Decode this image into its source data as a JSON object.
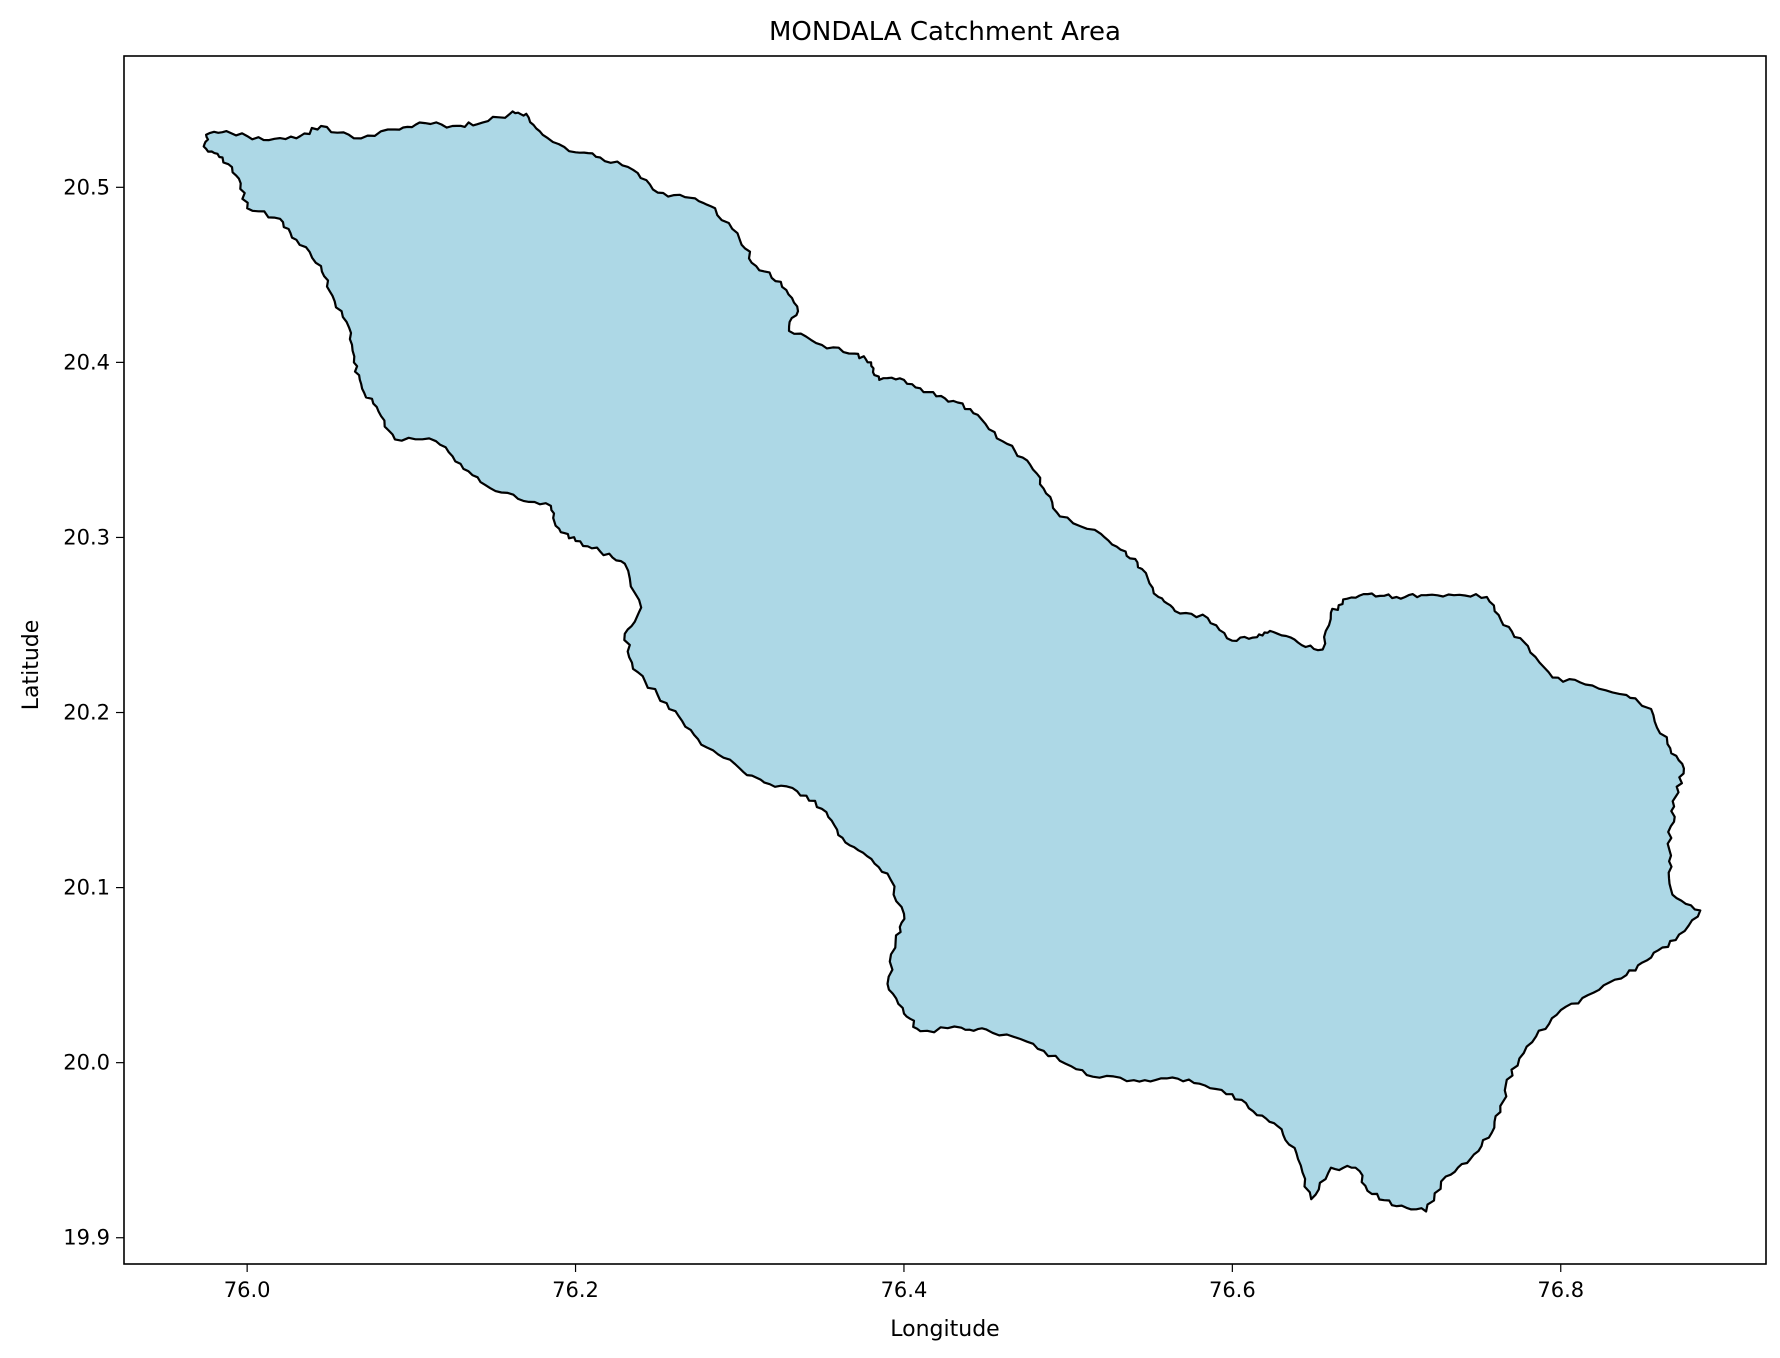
{
  "chart_data": {
    "type": "map",
    "title": "MONDALA Catchment Area",
    "xlabel": "Longitude",
    "ylabel": "Latitude",
    "xlim": [
      75.925,
      76.925
    ],
    "ylim": [
      19.885,
      20.575
    ],
    "xticks": [
      76.0,
      76.2,
      76.4,
      76.6,
      76.8
    ],
    "xtick_labels": [
      "76.0",
      "76.2",
      "76.4",
      "76.6",
      "76.8"
    ],
    "yticks": [
      19.9,
      20.0,
      20.1,
      20.2,
      20.3,
      20.4,
      20.5
    ],
    "ytick_labels": [
      "19.9",
      "20.0",
      "20.1",
      "20.2",
      "20.3",
      "20.4",
      "20.5"
    ],
    "grid": false,
    "legend": "none",
    "fill_color": "#add8e6",
    "edge_color": "#000000",
    "polygon": [
      [
        75.975,
        20.53
      ],
      [
        75.99,
        20.531
      ],
      [
        76.01,
        20.527
      ],
      [
        76.03,
        20.528
      ],
      [
        76.045,
        20.535
      ],
      [
        76.065,
        20.528
      ],
      [
        76.09,
        20.533
      ],
      [
        76.105,
        20.537
      ],
      [
        76.125,
        20.535
      ],
      [
        76.14,
        20.536
      ],
      [
        76.16,
        20.542
      ],
      [
        76.17,
        20.542
      ],
      [
        76.18,
        20.53
      ],
      [
        76.2,
        20.52
      ],
      [
        76.215,
        20.517
      ],
      [
        76.235,
        20.51
      ],
      [
        76.25,
        20.497
      ],
      [
        76.27,
        20.494
      ],
      [
        76.285,
        20.488
      ],
      [
        76.3,
        20.47
      ],
      [
        76.31,
        20.455
      ],
      [
        76.325,
        20.446
      ],
      [
        76.335,
        20.432
      ],
      [
        76.33,
        20.418
      ],
      [
        76.35,
        20.41
      ],
      [
        76.37,
        20.405
      ],
      [
        76.38,
        20.4
      ],
      [
        76.385,
        20.39
      ],
      [
        76.4,
        20.39
      ],
      [
        76.415,
        20.383
      ],
      [
        76.43,
        20.378
      ],
      [
        76.445,
        20.37
      ],
      [
        76.46,
        20.355
      ],
      [
        76.475,
        20.344
      ],
      [
        76.485,
        20.328
      ],
      [
        76.495,
        20.312
      ],
      [
        76.52,
        20.302
      ],
      [
        76.535,
        20.292
      ],
      [
        76.545,
        20.282
      ],
      [
        76.555,
        20.266
      ],
      [
        76.565,
        20.258
      ],
      [
        76.585,
        20.254
      ],
      [
        76.6,
        20.241
      ],
      [
        76.615,
        20.243
      ],
      [
        76.625,
        20.246
      ],
      [
        76.64,
        20.24
      ],
      [
        76.655,
        20.236
      ],
      [
        76.66,
        20.257
      ],
      [
        76.67,
        20.265
      ],
      [
        76.685,
        20.268
      ],
      [
        76.7,
        20.266
      ],
      [
        76.715,
        20.267
      ],
      [
        76.735,
        20.267
      ],
      [
        76.755,
        20.266
      ],
      [
        76.765,
        20.25
      ],
      [
        76.78,
        20.238
      ],
      [
        76.795,
        20.22
      ],
      [
        76.815,
        20.216
      ],
      [
        76.84,
        20.21
      ],
      [
        76.855,
        20.202
      ],
      [
        76.865,
        20.182
      ],
      [
        76.875,
        20.168
      ],
      [
        76.87,
        20.152
      ],
      [
        76.867,
        20.135
      ],
      [
        76.866,
        20.115
      ],
      [
        76.868,
        20.096
      ],
      [
        76.885,
        20.087
      ],
      [
        76.87,
        20.07
      ],
      [
        76.855,
        20.06
      ],
      [
        76.84,
        20.05
      ],
      [
        76.82,
        20.04
      ],
      [
        76.8,
        20.03
      ],
      [
        76.785,
        20.015
      ],
      [
        76.77,
        19.996
      ],
      [
        76.765,
        19.978
      ],
      [
        76.758,
        19.96
      ],
      [
        76.745,
        19.945
      ],
      [
        76.73,
        19.935
      ],
      [
        76.718,
        19.915
      ],
      [
        76.7,
        19.918
      ],
      [
        76.685,
        19.925
      ],
      [
        76.675,
        19.94
      ],
      [
        76.66,
        19.94
      ],
      [
        76.648,
        19.922
      ],
      [
        76.64,
        19.945
      ],
      [
        76.63,
        19.962
      ],
      [
        76.615,
        19.97
      ],
      [
        76.6,
        19.982
      ],
      [
        76.58,
        19.988
      ],
      [
        76.56,
        19.991
      ],
      [
        76.54,
        19.99
      ],
      [
        76.515,
        19.992
      ],
      [
        76.495,
        20.001
      ],
      [
        76.475,
        20.012
      ],
      [
        76.45,
        20.019
      ],
      [
        76.435,
        20.02
      ],
      [
        76.41,
        20.018
      ],
      [
        76.4,
        20.028
      ],
      [
        76.39,
        20.045
      ],
      [
        76.395,
        20.07
      ],
      [
        76.4,
        20.085
      ],
      [
        76.39,
        20.108
      ],
      [
        76.375,
        20.12
      ],
      [
        76.36,
        20.13
      ],
      [
        76.35,
        20.145
      ],
      [
        76.335,
        20.155
      ],
      [
        76.315,
        20.16
      ],
      [
        76.3,
        20.168
      ],
      [
        76.28,
        20.18
      ],
      [
        76.265,
        20.195
      ],
      [
        76.25,
        20.21
      ],
      [
        76.235,
        20.225
      ],
      [
        76.23,
        20.245
      ],
      [
        76.24,
        20.26
      ],
      [
        76.23,
        20.285
      ],
      [
        76.215,
        20.292
      ],
      [
        76.2,
        20.298
      ],
      [
        76.19,
        20.305
      ],
      [
        76.185,
        20.318
      ],
      [
        76.165,
        20.322
      ],
      [
        76.145,
        20.33
      ],
      [
        76.13,
        20.342
      ],
      [
        76.115,
        20.355
      ],
      [
        76.09,
        20.356
      ],
      [
        76.08,
        20.372
      ],
      [
        76.07,
        20.385
      ],
      [
        76.065,
        20.4
      ],
      [
        76.062,
        20.42
      ],
      [
        76.052,
        20.438
      ],
      [
        76.045,
        20.455
      ],
      [
        76.03,
        20.47
      ],
      [
        76.02,
        20.482
      ],
      [
        76.0,
        20.488
      ],
      [
        75.995,
        20.505
      ],
      [
        75.985,
        20.517
      ],
      [
        75.975,
        20.522
      ]
    ]
  }
}
